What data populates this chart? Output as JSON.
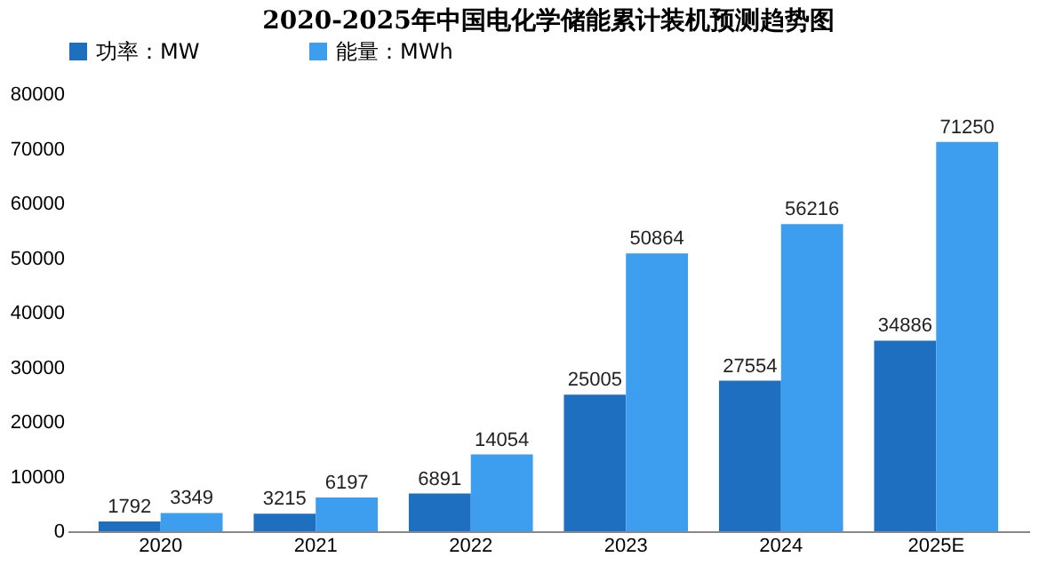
{
  "chart_data": {
    "type": "bar",
    "title": "2020-2025年中国电化学储能累计装机预测趋势图",
    "categories": [
      "2020",
      "2021",
      "2022",
      "2023",
      "2024",
      "2025E"
    ],
    "series": [
      {
        "name": "功率：MW",
        "color": "#1f6fc0",
        "values": [
          1792,
          3215,
          6891,
          25005,
          27554,
          34886
        ]
      },
      {
        "name": "能量：MWh",
        "color": "#3d9ef0",
        "values": [
          3349,
          6197,
          14054,
          50864,
          56216,
          71250
        ]
      }
    ],
    "ylim": [
      0,
      80000
    ],
    "yticks": [
      0,
      10000,
      20000,
      30000,
      40000,
      50000,
      60000,
      70000,
      80000
    ],
    "grid": false,
    "legend": "top",
    "data_labels": true
  }
}
